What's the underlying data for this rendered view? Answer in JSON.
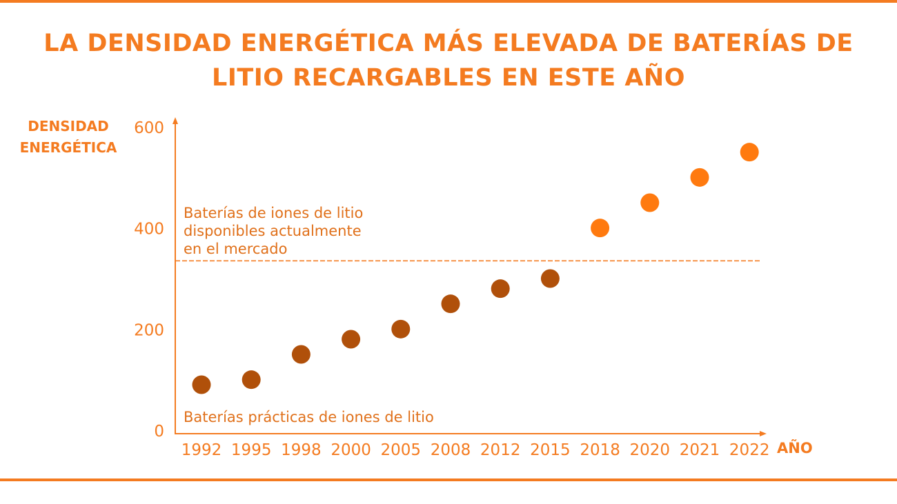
{
  "title_lines": [
    "LA DENSIDAD ENERGÉTICA MÁS ELEVADA DE BATERÍAS DE",
    "LITIO RECARGABLES EN ESTE AÑO"
  ],
  "colors": {
    "accent": "#f47b20",
    "dark_points": "#b0500a",
    "bright_points": "#ff7a0f"
  },
  "chart_data": {
    "type": "scatter",
    "title": "LA DENSIDAD ENERGÉTICA MÁS ELEVADA DE BATERÍAS DE LITIO RECARGABLES EN ESTE AÑO",
    "ylabel_lines": [
      "DENSIDAD",
      "ENERGÉTICA"
    ],
    "xlabel": "AÑO",
    "categories": [
      "1992",
      "1995",
      "1998",
      "2000",
      "2005",
      "2008",
      "2012",
      "2015",
      "2018",
      "2020",
      "2021",
      "2022"
    ],
    "y_ticks": [
      "0",
      "200",
      "400",
      "600"
    ],
    "ylim": [
      0,
      600
    ],
    "grid": false,
    "series": [
      {
        "values": [
          90,
          100,
          150,
          180,
          200,
          250,
          280,
          300
        ],
        "color": "#b0500a"
      },
      {
        "offset": 8,
        "values": [
          400,
          450,
          500,
          550
        ],
        "color": "#ff7a0f"
      }
    ],
    "reference_line": {
      "y": 335,
      "style": "dashed"
    },
    "annotations": [
      [
        "Baterías de iones de litio",
        "disponibles actualmente",
        "en el mercado"
      ],
      [
        "Baterías prácticas de iones de litio"
      ]
    ]
  }
}
